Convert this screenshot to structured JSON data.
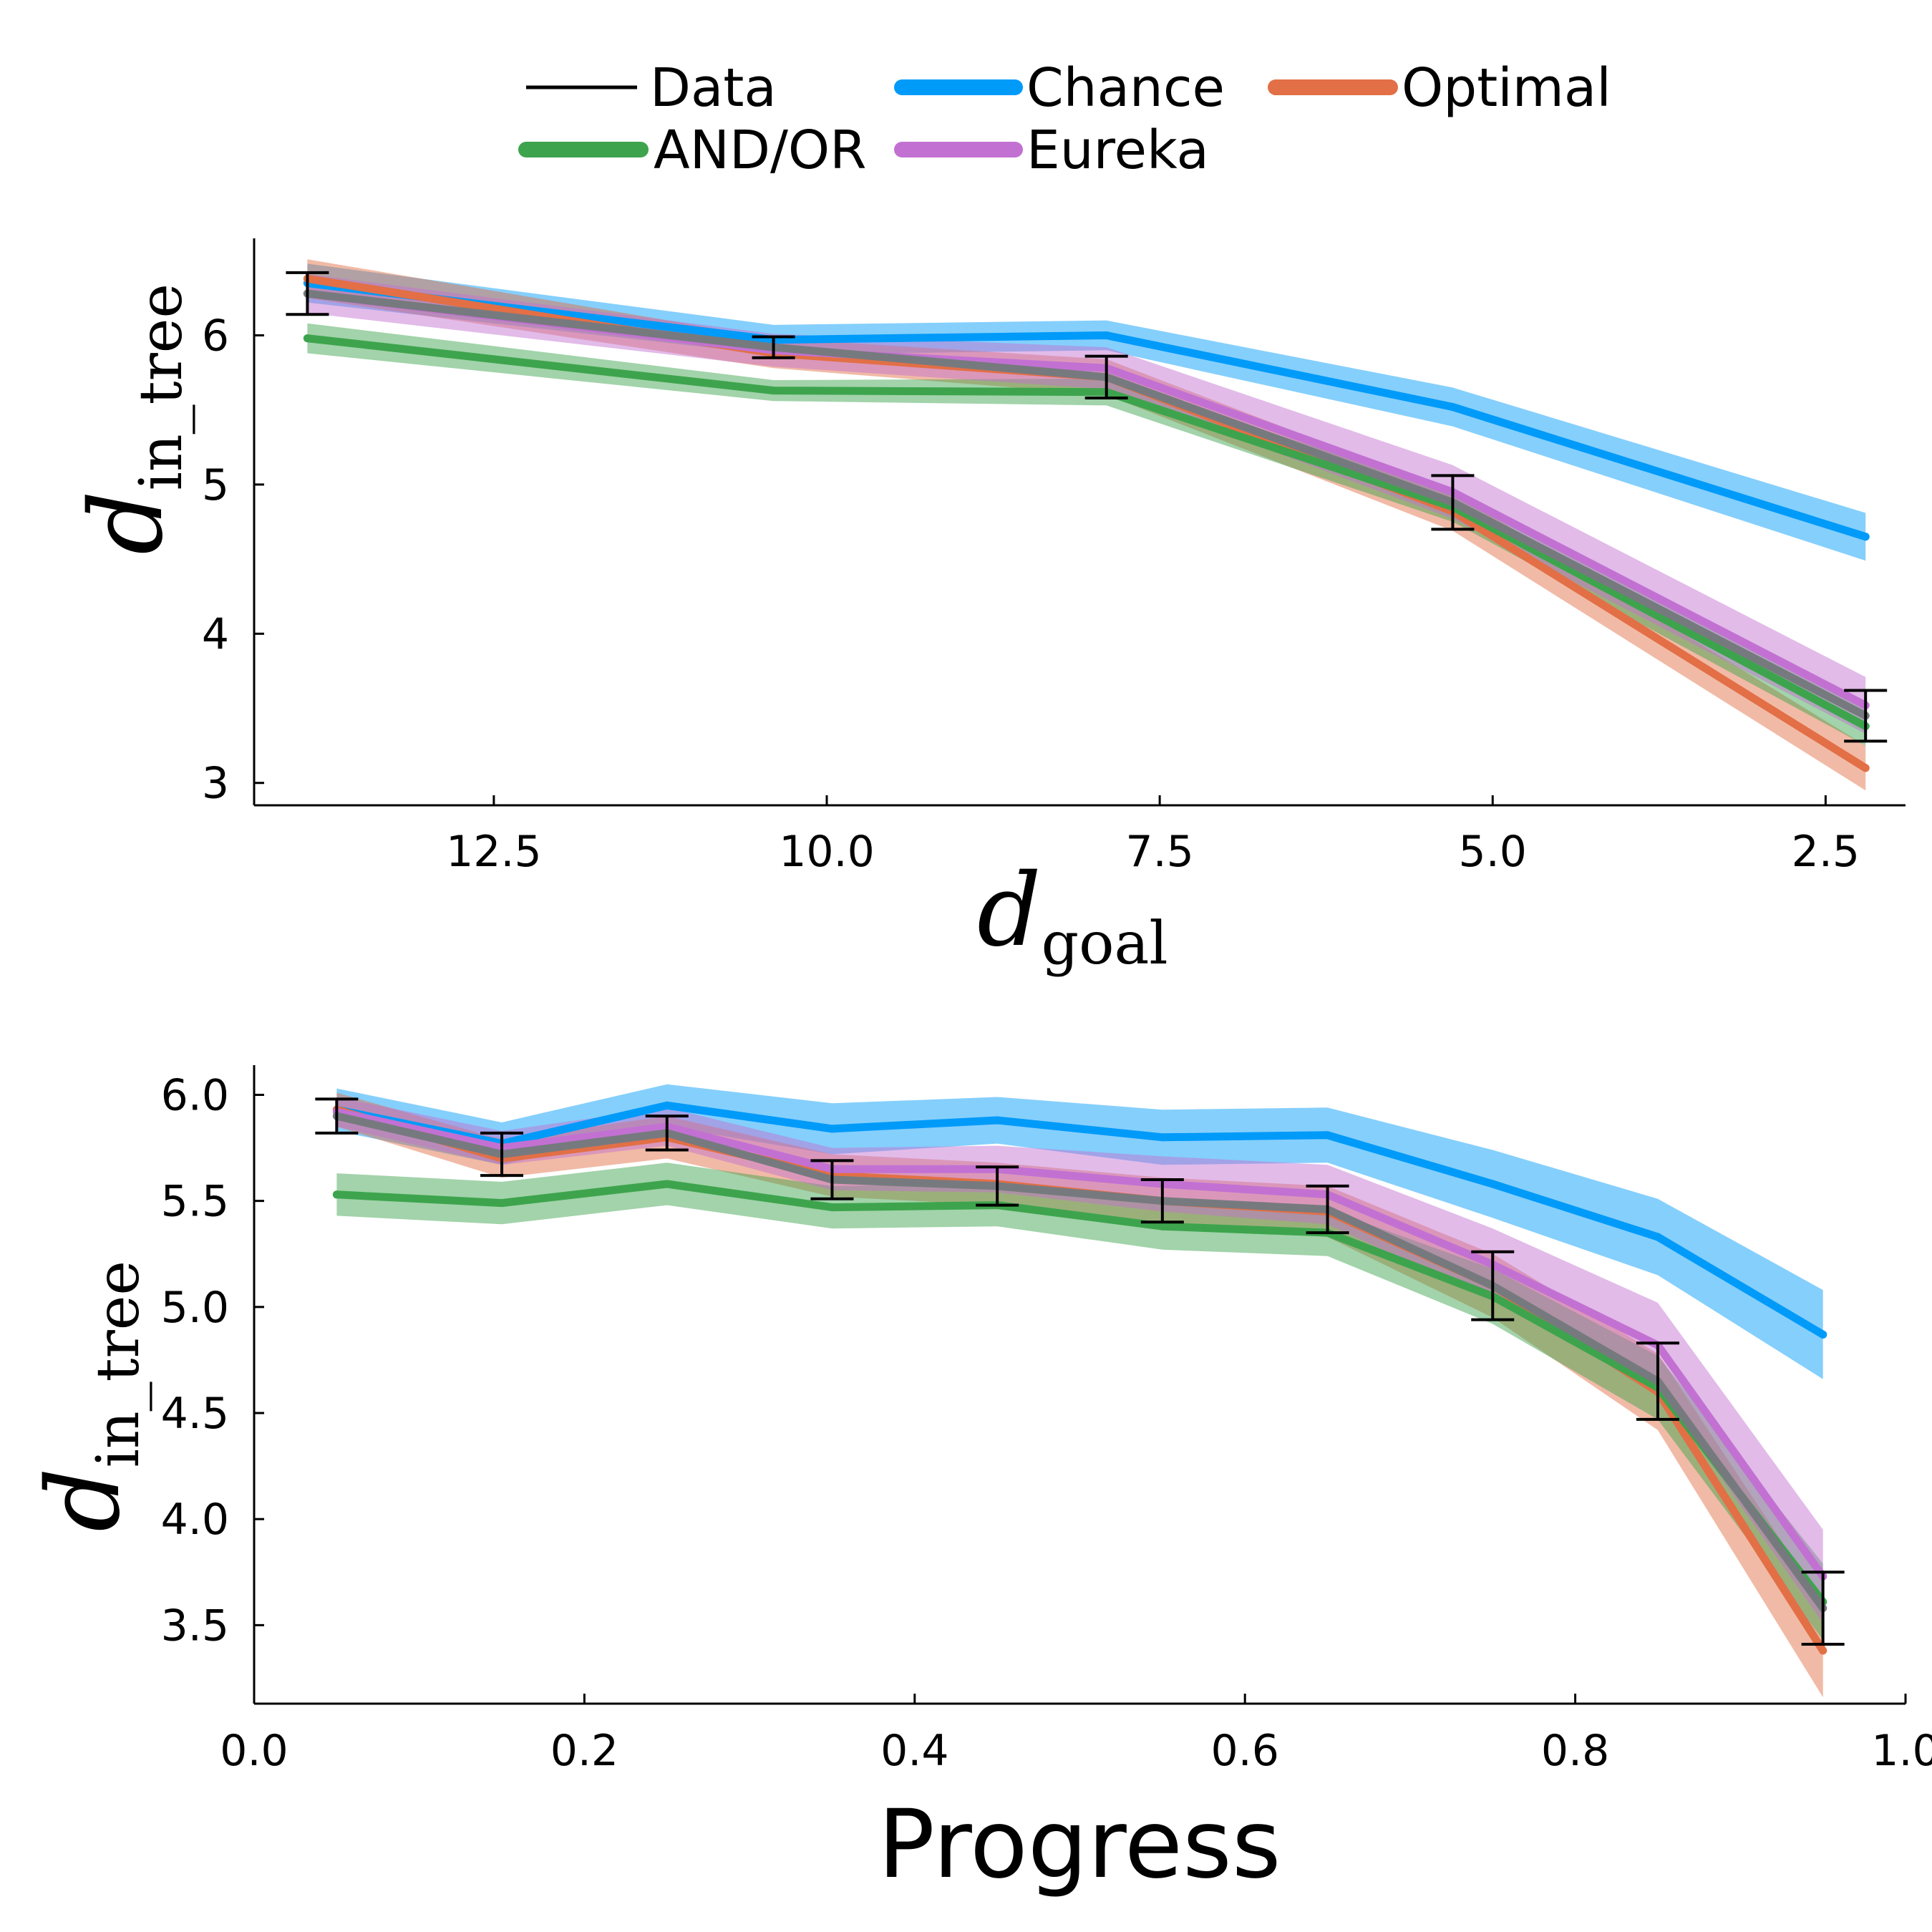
{
  "legend": {
    "items": [
      {
        "label": "Data",
        "color": "#000000",
        "style": "thin"
      },
      {
        "label": "Chance",
        "color": "#009af9",
        "style": "thick"
      },
      {
        "label": "Optimal",
        "color": "#e26f46",
        "style": "thick"
      },
      {
        "label": "AND/OR",
        "color": "#3da44d",
        "style": "thick"
      },
      {
        "label": "Eureka",
        "color": "#c271d2",
        "style": "thick"
      }
    ]
  },
  "chart_data": [
    {
      "type": "line",
      "xlabel": "d goal",
      "xlabel_main": "d",
      "xlabel_sub": "goal",
      "ylabel": "d in_tree",
      "ylabel_main": "d",
      "ylabel_sub": "in_tree",
      "x_reversed": true,
      "xlim": [
        14.3,
        1.9
      ],
      "ylim": [
        2.85,
        6.65
      ],
      "xticks": [
        12.5,
        10.0,
        7.5,
        5.0,
        2.5
      ],
      "xtick_labels": [
        "12.5",
        "10.0",
        "7.5",
        "5.0",
        "2.5"
      ],
      "yticks": [
        3,
        4,
        5,
        6
      ],
      "ytick_labels": [
        "3",
        "4",
        "5",
        "6"
      ],
      "grid": false,
      "legend_placement": "top-center",
      "x": [
        13.9,
        10.4,
        7.9,
        5.3,
        2.2
      ],
      "series": [
        {
          "name": "Chance",
          "color": "#009af9",
          "values": [
            6.35,
            5.97,
            6.0,
            5.52,
            4.65
          ],
          "band": [
            0.13,
            0.1,
            0.1,
            0.13,
            0.16
          ]
        },
        {
          "name": "Optimal",
          "color": "#e26f46",
          "values": [
            6.38,
            5.88,
            5.72,
            4.82,
            3.1
          ],
          "band": [
            0.13,
            0.1,
            0.12,
            0.13,
            0.15
          ]
        },
        {
          "name": "AND/OR",
          "color": "#3da44d",
          "values": [
            5.98,
            5.63,
            5.62,
            4.85,
            3.38
          ],
          "band": [
            0.1,
            0.07,
            0.09,
            0.1,
            0.13
          ]
        },
        {
          "name": "Eureka",
          "color": "#c271d2",
          "values": [
            6.28,
            5.9,
            5.78,
            4.95,
            3.52
          ],
          "band": [
            0.13,
            0.11,
            0.14,
            0.18,
            0.19
          ]
        },
        {
          "name": "Data",
          "color": "#767a7e",
          "values": [
            6.28,
            5.92,
            5.72,
            4.88,
            3.45
          ],
          "band": [
            0,
            0,
            0,
            0,
            0
          ],
          "error": [
            0.14,
            0.07,
            0.14,
            0.18,
            0.17
          ]
        }
      ]
    },
    {
      "type": "line",
      "xlabel": "Progress",
      "ylabel": "d in_tree",
      "ylabel_main": "d",
      "ylabel_sub": "in_tree",
      "x_reversed": false,
      "xlim": [
        0.0,
        1.0
      ],
      "ylim": [
        3.13,
        6.14
      ],
      "xticks": [
        0.0,
        0.2,
        0.4,
        0.6,
        0.8,
        1.0
      ],
      "xtick_labels": [
        "0.0",
        "0.2",
        "0.4",
        "0.6",
        "0.8",
        "1.0"
      ],
      "yticks": [
        3.5,
        4.0,
        4.5,
        5.0,
        5.5,
        6.0
      ],
      "ytick_labels": [
        "3.5",
        "4.0",
        "4.5",
        "5.0",
        "5.5",
        "6.0"
      ],
      "grid": false,
      "x": [
        0.05,
        0.15,
        0.25,
        0.35,
        0.45,
        0.55,
        0.65,
        0.75,
        0.85,
        0.95
      ],
      "series": [
        {
          "name": "Chance",
          "color": "#009af9",
          "values": [
            5.93,
            5.77,
            5.95,
            5.84,
            5.88,
            5.8,
            5.81,
            5.58,
            5.33,
            4.87
          ],
          "band": [
            0.1,
            0.1,
            0.1,
            0.12,
            0.11,
            0.13,
            0.13,
            0.16,
            0.18,
            0.21
          ]
        },
        {
          "name": "Optimal",
          "color": "#e26f46",
          "values": [
            5.93,
            5.7,
            5.8,
            5.62,
            5.58,
            5.5,
            5.45,
            5.1,
            4.6,
            3.38
          ],
          "band": [
            0.08,
            0.09,
            0.1,
            0.1,
            0.1,
            0.11,
            0.12,
            0.15,
            0.18,
            0.22
          ]
        },
        {
          "name": "AND/OR",
          "color": "#3da44d",
          "values": [
            5.53,
            5.49,
            5.58,
            5.47,
            5.48,
            5.38,
            5.35,
            5.05,
            4.62,
            3.61
          ],
          "band": [
            0.1,
            0.1,
            0.1,
            0.1,
            0.1,
            0.11,
            0.11,
            0.13,
            0.15,
            0.18
          ]
        },
        {
          "name": "Eureka",
          "color": "#c271d2",
          "values": [
            5.92,
            5.75,
            5.85,
            5.65,
            5.65,
            5.58,
            5.53,
            5.2,
            4.82,
            3.73
          ],
          "band": [
            0.07,
            0.08,
            0.09,
            0.1,
            0.11,
            0.13,
            0.14,
            0.17,
            0.2,
            0.22
          ]
        },
        {
          "name": "Data",
          "color": "#767a7e",
          "values": [
            5.9,
            5.72,
            5.82,
            5.6,
            5.57,
            5.5,
            5.46,
            5.1,
            4.65,
            3.58
          ],
          "band": [
            0,
            0,
            0,
            0,
            0,
            0,
            0,
            0,
            0,
            0
          ],
          "error": [
            0.08,
            0.1,
            0.08,
            0.09,
            0.09,
            0.1,
            0.11,
            0.16,
            0.18,
            0.17
          ]
        }
      ]
    }
  ]
}
